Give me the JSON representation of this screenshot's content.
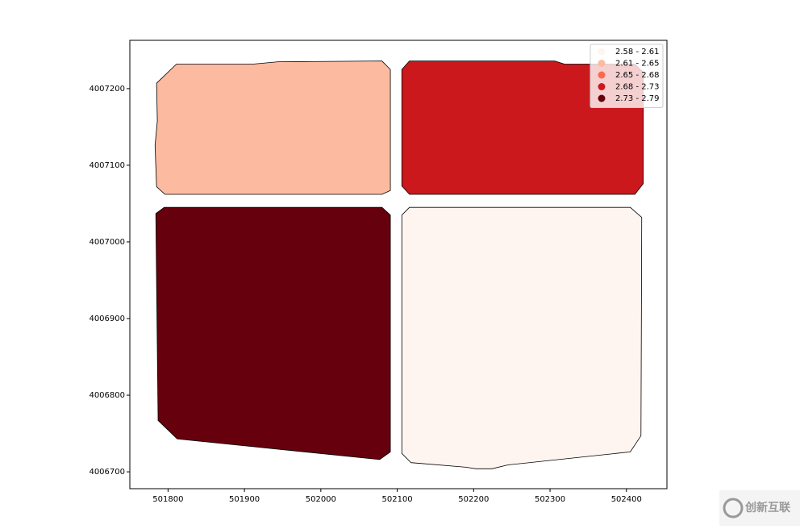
{
  "chart_data": {
    "type": "choropleth",
    "xlim": [
      501750,
      502453
    ],
    "ylim": [
      4006678,
      4007263
    ],
    "xticks": [
      501800,
      501900,
      502000,
      502100,
      502200,
      502300,
      502400
    ],
    "yticks": [
      4006700,
      4006800,
      4006900,
      4007000,
      4007100,
      4007200
    ],
    "bins": [
      2.58,
      2.61,
      2.65,
      2.68,
      2.73,
      2.79
    ],
    "colors": [
      "#fff5f0",
      "#fcbba1",
      "#fb6a4a",
      "#cb181d",
      "#67000d"
    ],
    "legend": [
      "2.58 - 2.61",
      "2.61 - 2.65",
      "2.65 - 2.68",
      "2.68 - 2.73",
      "2.73 - 2.79"
    ],
    "legend_position": "upper right",
    "regions": [
      {
        "value": 2.63,
        "x": [
          501811,
          501911,
          501944,
          502080,
          502091,
          502091,
          502080,
          501796,
          501785,
          501783,
          501786,
          501785
        ],
        "y": [
          4007232,
          4007232,
          4007235,
          4007236,
          4007225,
          4007067,
          4007062,
          4007062,
          4007072,
          4007126,
          4007158,
          4007207
        ]
      },
      {
        "value": 2.7,
        "x": [
          502116,
          502306,
          502319,
          502411,
          502422,
          502422,
          502411,
          502116,
          502106,
          502106
        ],
        "y": [
          4007236,
          4007236,
          4007232,
          4007232,
          4007221,
          4007076,
          4007062,
          4007062,
          4007073,
          4007225
        ]
      },
      {
        "value": 2.76,
        "x": [
          501795,
          502080,
          502091,
          502091,
          502077,
          501812,
          501787,
          501784
        ],
        "y": [
          4007045,
          4007045,
          4007035,
          4006726,
          4006716,
          4006743,
          4006767,
          4007037
        ]
      },
      {
        "value": 2.6,
        "x": [
          502116,
          502405,
          502420,
          502419,
          502405,
          502245,
          502224,
          502203,
          502190,
          502118,
          502106,
          502106
        ],
        "y": [
          4007045,
          4007045,
          4007032,
          4006747,
          4006726,
          4006709,
          4006704,
          4006704,
          4006706,
          4006712,
          4006724,
          4007035
        ]
      }
    ]
  },
  "watermark": "创新互联"
}
